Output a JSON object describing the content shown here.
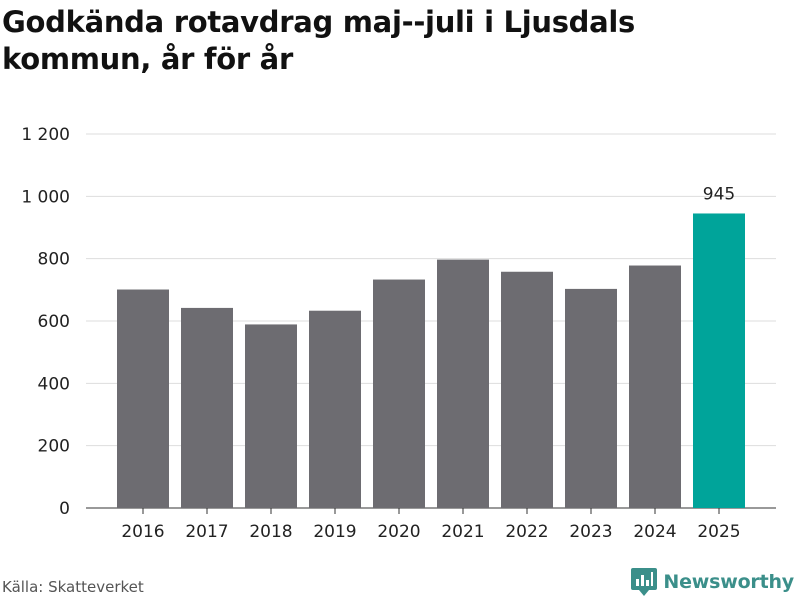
{
  "chart_data": {
    "type": "bar",
    "title": "Godkända rotavdrag maj--juli i Ljusdals kommun, år för år",
    "xlabel": "",
    "ylabel": "",
    "categories": [
      "2016",
      "2017",
      "2018",
      "2019",
      "2020",
      "2021",
      "2022",
      "2023",
      "2024",
      "2025"
    ],
    "values": [
      701,
      642,
      589,
      633,
      733,
      797,
      758,
      703,
      778,
      945
    ],
    "ylim": [
      0,
      1200
    ],
    "yticks": [
      0,
      200,
      400,
      600,
      800,
      1000,
      1200
    ],
    "ytick_labels": [
      "0",
      "200",
      "400",
      "600",
      "800",
      "1 000",
      "1 200"
    ],
    "data_labels": [
      {
        "category": "2025",
        "text": "945"
      }
    ],
    "grid": true,
    "legend": "none",
    "colors": {
      "bar": "#6d6c71",
      "highlight": "#00a49a",
      "grid": "#dddddd"
    },
    "highlight_category": "2025"
  },
  "footer": {
    "source": "Källa: Skatteverket",
    "brand": "Newsworthy"
  },
  "brand_colors": {
    "logo": "#3b8f8a"
  },
  "icons": {
    "logo": "newsworthy-logo-icon"
  }
}
